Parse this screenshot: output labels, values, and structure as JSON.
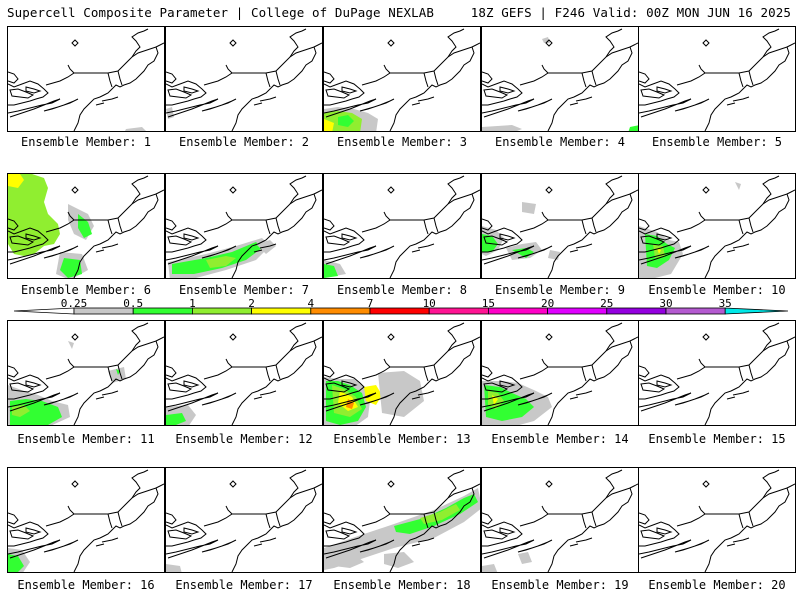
{
  "header": {
    "title": "Supercell Composite Parameter | College of DuPage NEXLAB",
    "run_info": "18Z GEFS | F246 Valid: 00Z MON JUN 16 2025"
  },
  "colorbar": {
    "labels": [
      "0.25",
      "0.5",
      "1",
      "2",
      "4",
      "7",
      "10",
      "15",
      "20",
      "25",
      "30",
      "35"
    ],
    "colors": [
      "#c8c8c8",
      "#32ff32",
      "#90ee30",
      "#ffff00",
      "#ff8c00",
      "#ff0000",
      "#ff1493",
      "#ff00c8",
      "#e000ff",
      "#9400e0",
      "#b45ad0",
      "#00e8e8"
    ],
    "left_arrow_color": "#ffffff",
    "right_arrow_color": "#00e8e8"
  },
  "members": [
    {
      "label": "Ensemble Member: 1"
    },
    {
      "label": "Ensemble Member: 2"
    },
    {
      "label": "Ensemble Member: 3"
    },
    {
      "label": "Ensemble Member: 4"
    },
    {
      "label": "Ensemble Member: 5"
    },
    {
      "label": "Ensemble Member: 6"
    },
    {
      "label": "Ensemble Member: 7"
    },
    {
      "label": "Ensemble Member: 8"
    },
    {
      "label": "Ensemble Member: 9"
    },
    {
      "label": "Ensemble Member: 10"
    },
    {
      "label": "Ensemble Member: 11"
    },
    {
      "label": "Ensemble Member: 12"
    },
    {
      "label": "Ensemble Member: 13"
    },
    {
      "label": "Ensemble Member: 14"
    },
    {
      "label": "Ensemble Member: 15"
    },
    {
      "label": "Ensemble Member: 16"
    },
    {
      "label": "Ensemble Member: 17"
    },
    {
      "label": "Ensemble Member: 18"
    },
    {
      "label": "Ensemble Member: 19"
    },
    {
      "label": "Ensemble Member: 20"
    }
  ]
}
